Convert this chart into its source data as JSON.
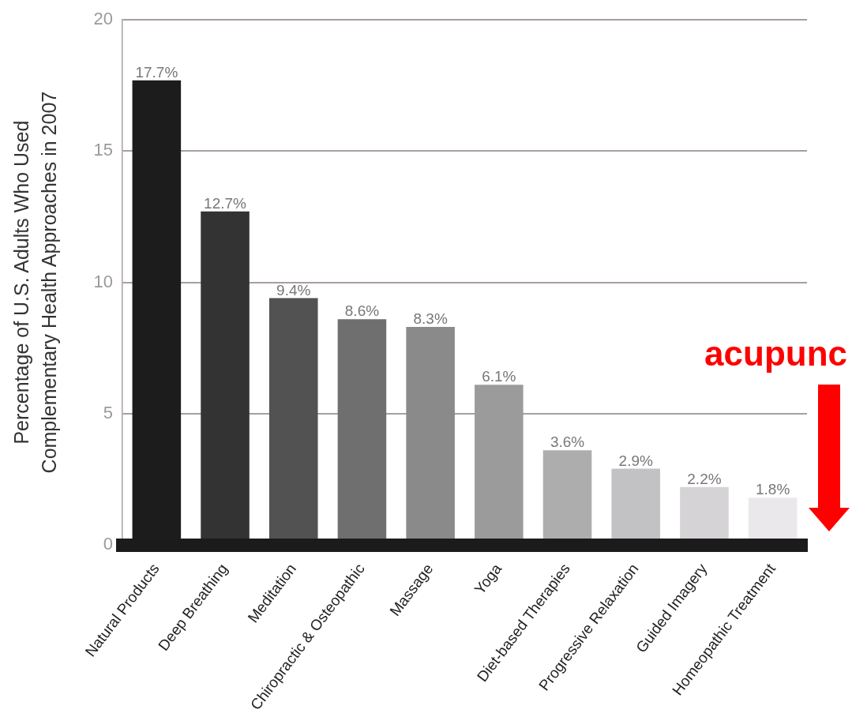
{
  "chart_data": {
    "type": "bar",
    "ylabel": "Percentage of U.S. Adults Who Used\nComplementary Health Approaches in 2007",
    "categories": [
      "Natural Products",
      "Deep Breathing",
      "Meditation",
      "Chiropractic & Osteopathic",
      "Massage",
      "Yoga",
      "Diet-based Therapies",
      "Progressive Relaxation",
      "Guided Imagery",
      "Homeopathic Treatment"
    ],
    "values": [
      17.7,
      12.7,
      9.4,
      8.6,
      8.3,
      6.1,
      3.6,
      2.9,
      2.2,
      1.8
    ],
    "colors": [
      "#1c1c1c",
      "#333333",
      "#525252",
      "#6f6f6f",
      "#8a8a8a",
      "#9b9b9b",
      "#adadad",
      "#c2c1c3",
      "#d5d3d6",
      "#ebe8ec"
    ],
    "value_labels": [
      "17.7%",
      "12.7%",
      "9.4%",
      "8.6%",
      "8.3%",
      "6.1%",
      "3.6%",
      "2.9%",
      "2.2%",
      "1.8%"
    ],
    "ylim": [
      0,
      20
    ],
    "yticks": [
      0,
      5,
      10,
      15,
      20
    ],
    "grid": "y",
    "annotations": [
      "acupunc"
    ]
  }
}
